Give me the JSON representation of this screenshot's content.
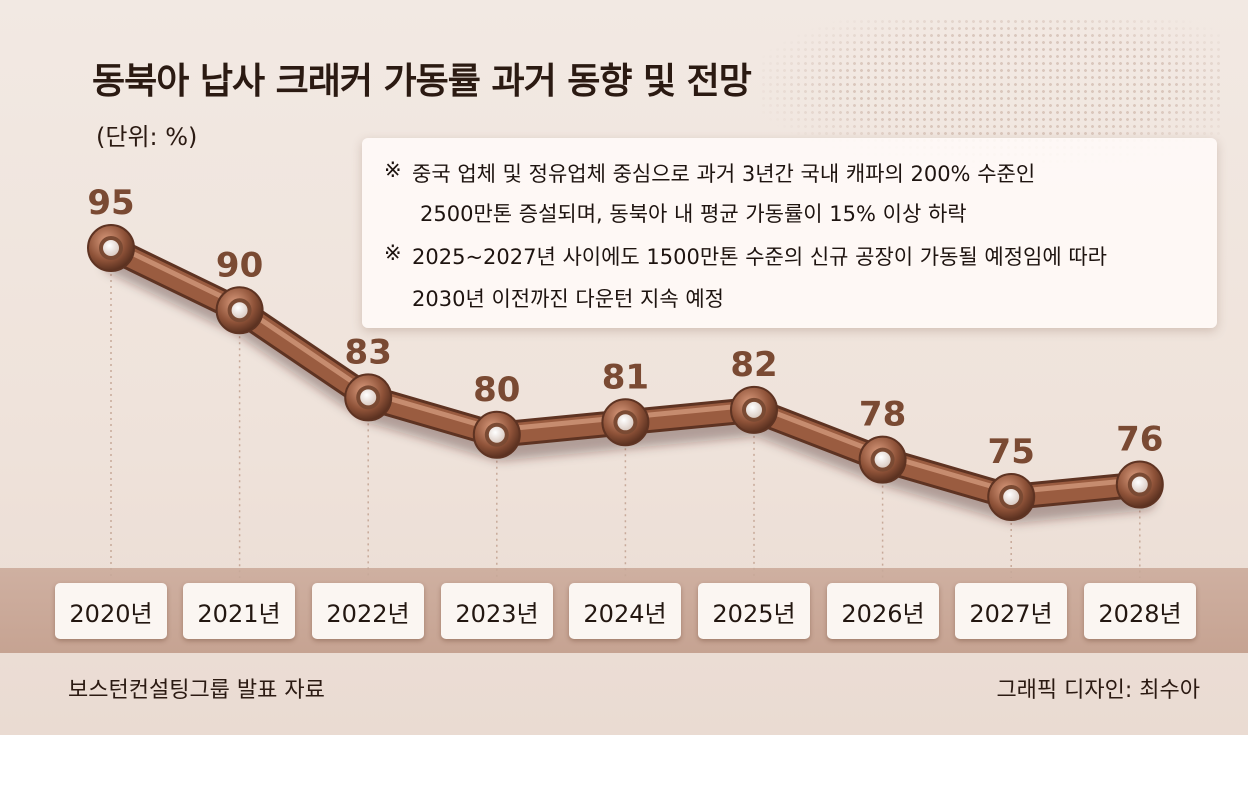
{
  "title": "동북아 납사 크래커 가동률 과거 동향 및 전망",
  "unit_label": "(단위: %)",
  "notes": [
    {
      "mark": "※",
      "line1": "중국 업체 및 정유업체 중심으로 과거 3년간 국내 캐파의 200% 수준인",
      "line2": "2500만톤 증설되며, 동북아 내 평균 가동률이 15% 이상 하락"
    },
    {
      "mark": "※",
      "line1": "2025~2027년 사이에도 1500만톤 수준의 신규 공장이 가동될 예정임에 따라",
      "line2": "2030년 이전까진 다운턴 지속 예정"
    }
  ],
  "source": "보스턴컨설팅그룹 발표 자료",
  "credit": "그래픽 디자인: 최수아",
  "colors": {
    "line": "#8e5238",
    "line_dark": "#5e3322",
    "label": "#7a4a33"
  },
  "chart_data": {
    "type": "line",
    "title": "동북아 납사 크래커 가동률 과거 동향 및 전망",
    "ylabel": "(단위: %)",
    "categories": [
      "2020년",
      "2021년",
      "2022년",
      "2023년",
      "2024년",
      "2025년",
      "2026년",
      "2027년",
      "2028년"
    ],
    "values": [
      95,
      90,
      83,
      80,
      81,
      82,
      78,
      75,
      76
    ],
    "ylim": [
      75,
      95
    ],
    "grid": false,
    "legend": "none"
  }
}
